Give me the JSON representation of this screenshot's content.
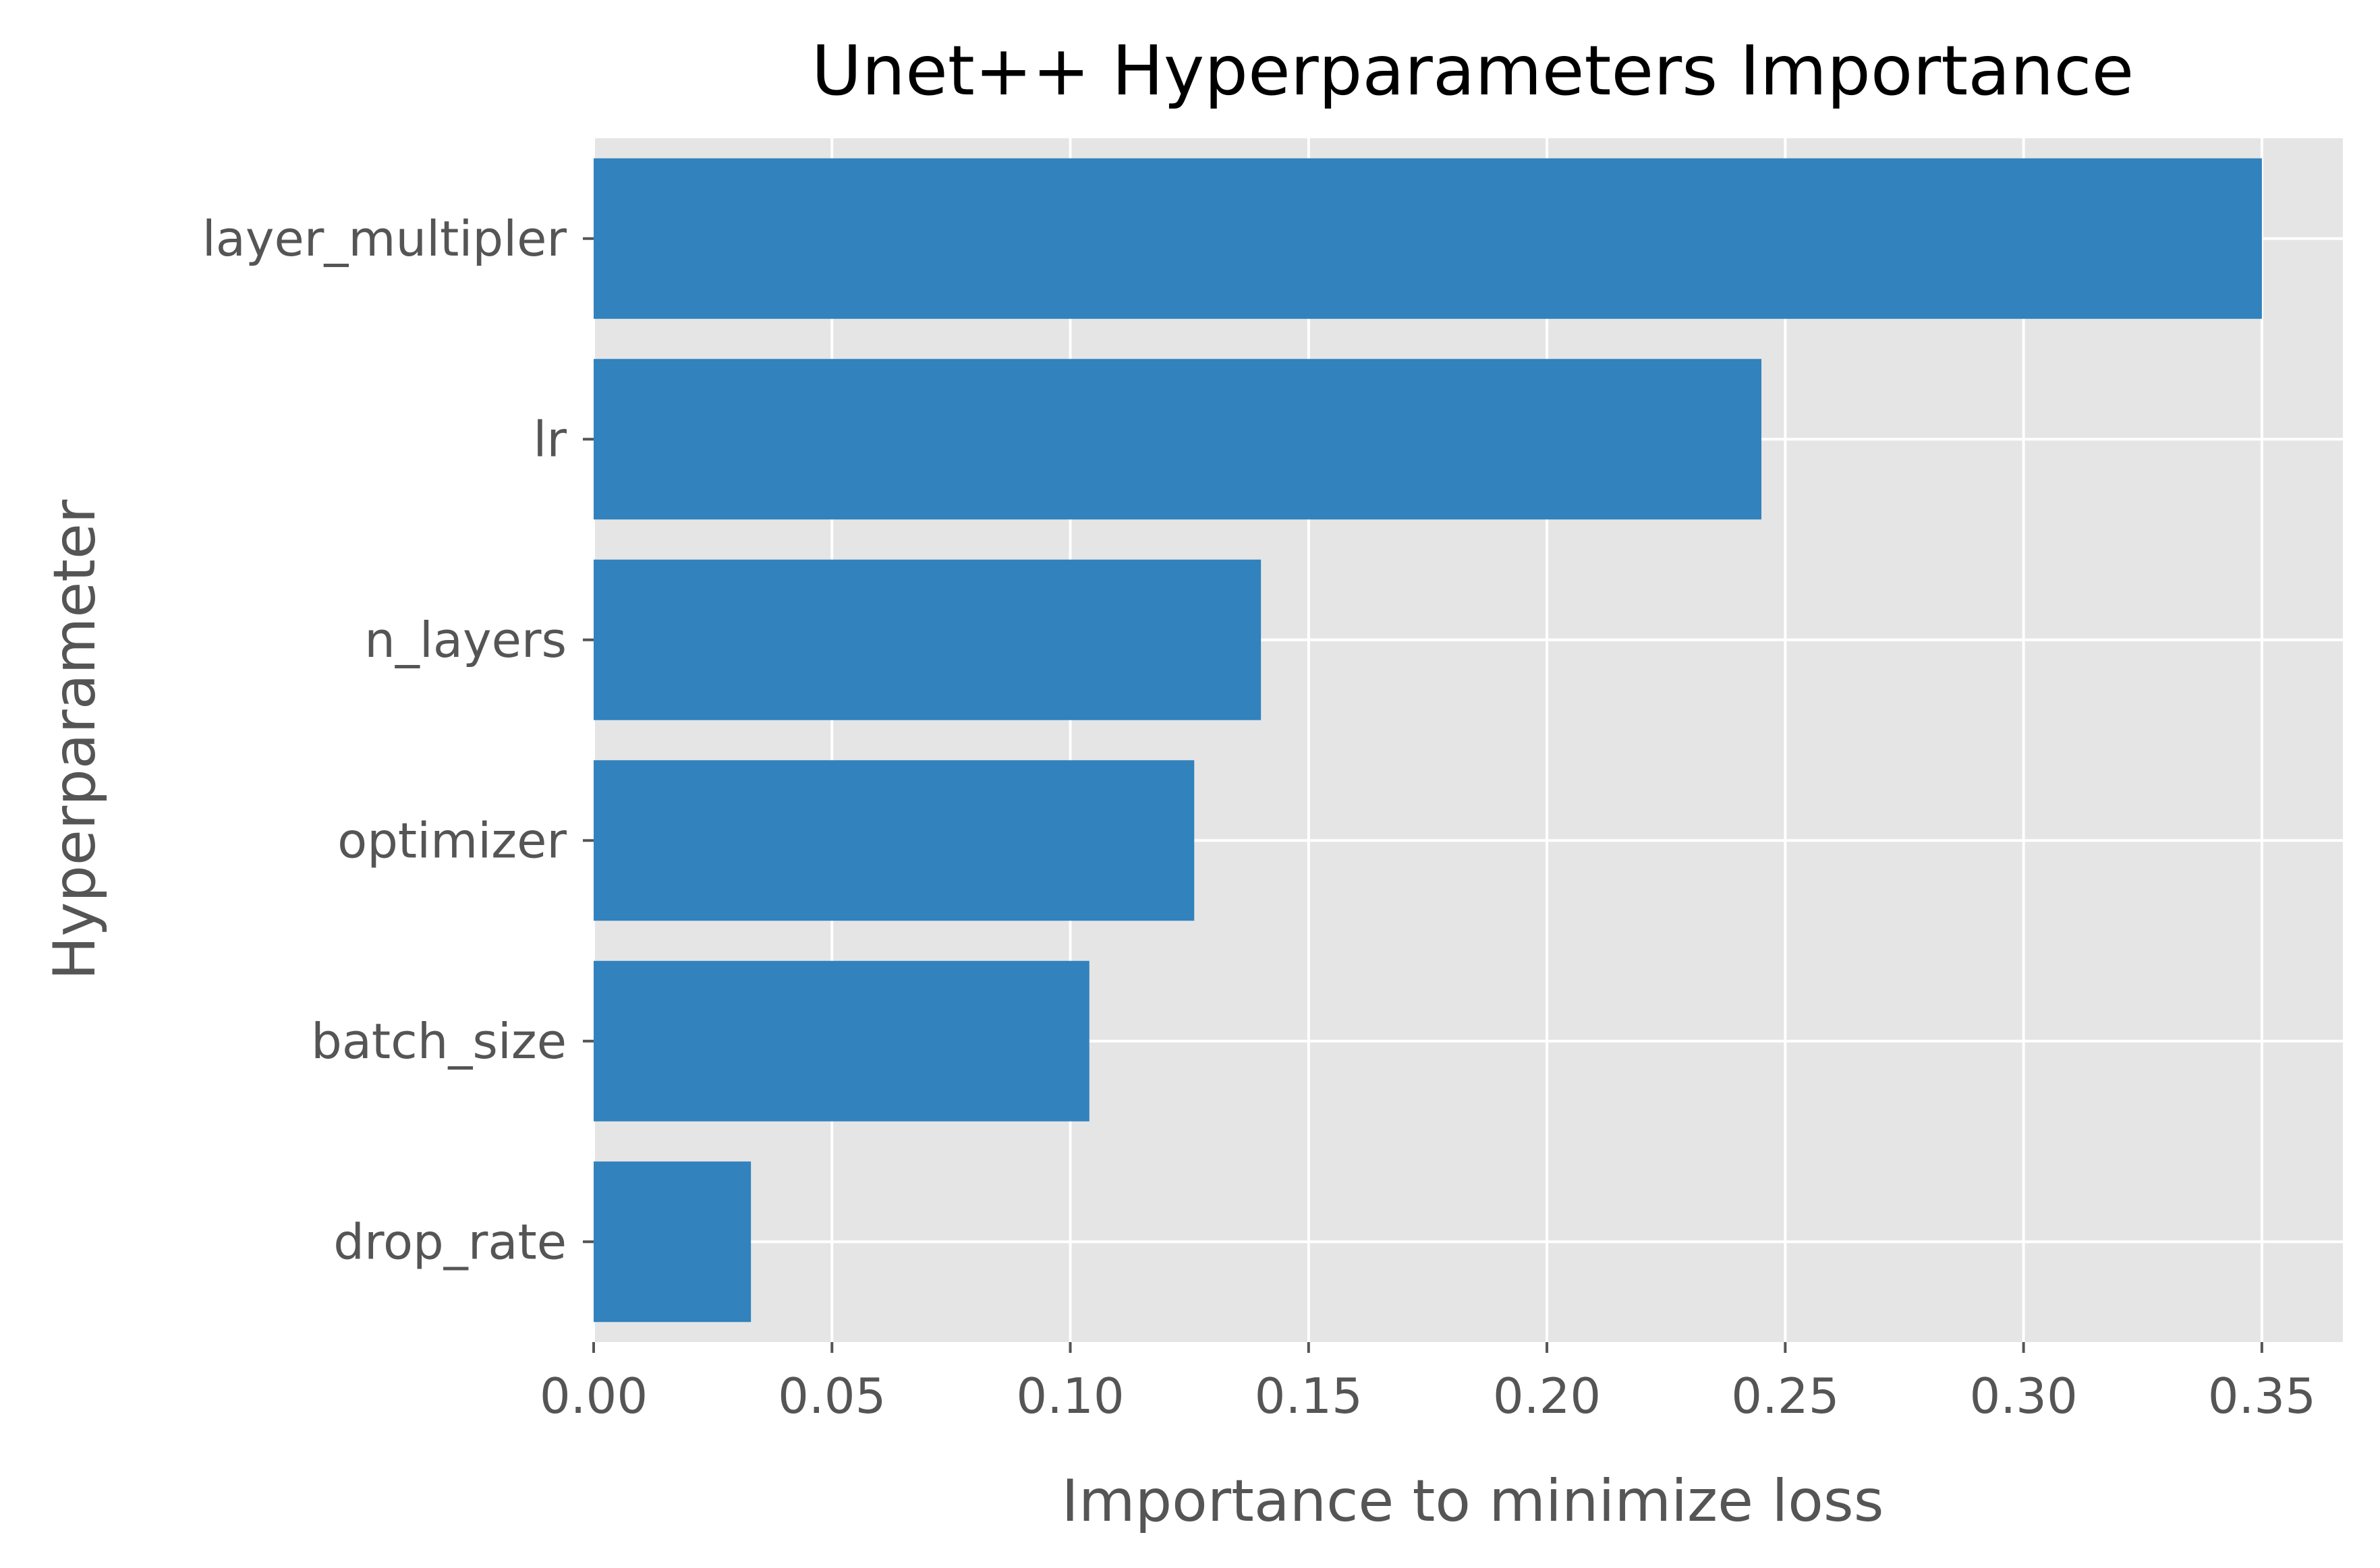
{
  "chart_data": {
    "type": "bar",
    "orientation": "horizontal",
    "title": "Unet++ Hyperparameters Importance",
    "xlabel": "Importance to minimize loss",
    "ylabel": "Hyperparameter",
    "categories": [
      "layer_multipler",
      "lr",
      "n_layers",
      "optimizer",
      "batch_size",
      "drop_rate"
    ],
    "values": [
      0.35,
      0.245,
      0.14,
      0.126,
      0.104,
      0.033
    ],
    "xlim": [
      0,
      0.367
    ],
    "xticks": [
      0.0,
      0.05,
      0.1,
      0.15,
      0.2,
      0.25,
      0.3,
      0.35
    ],
    "xtick_labels": [
      "0.00",
      "0.05",
      "0.10",
      "0.15",
      "0.20",
      "0.25",
      "0.30",
      "0.35"
    ],
    "grid": true,
    "colors": {
      "bar": "#3182bd",
      "plot_background": "#e5e5e5",
      "grid": "#ffffff",
      "text": "#555555",
      "title": "#000000"
    }
  }
}
